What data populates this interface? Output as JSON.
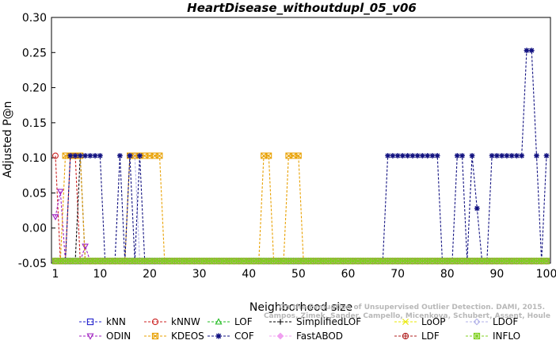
{
  "chart_data": {
    "type": "line",
    "title": "HeartDisease_withoutdupl_05_v06",
    "xlabel": "Neighborhood size",
    "ylabel": "Adjusted P@n",
    "xlim": [
      1,
      100
    ],
    "ylim": [
      -0.05,
      0.3
    ],
    "x_ticks": [
      1,
      10,
      20,
      30,
      40,
      50,
      60,
      70,
      80,
      90,
      100
    ],
    "x_tick_labels": [
      "1",
      "10",
      "20",
      "30",
      "40",
      "50",
      "60",
      "70",
      "80",
      "90",
      "100"
    ],
    "y_ticks": [
      -0.05,
      0.0,
      0.05,
      0.1,
      0.15,
      0.2,
      0.25,
      0.3
    ],
    "y_tick_labels": [
      "-0.05",
      "0.00",
      "0.05",
      "0.10",
      "0.15",
      "0.20",
      "0.25",
      "0.30"
    ],
    "grid": false,
    "legend_position": "bottom",
    "watermark": [
      "Campos, Zimek, Sander, Campello, Micenkova, Schubert, Assent, Houle",
      "On the Evaluation of Unsupervised Outlier Detection. DAMI, 2015."
    ],
    "series": [
      {
        "name": "kNN",
        "color": "#2222cc",
        "marker": "square",
        "points": [
          [
            1,
            -0.047
          ],
          [
            100,
            -0.047
          ]
        ]
      },
      {
        "name": "kNNW",
        "color": "#cc2222",
        "marker": "circle",
        "points": [
          [
            1,
            0.103
          ],
          [
            2,
            -0.047
          ],
          [
            3,
            -0.047
          ],
          [
            4,
            0.103
          ],
          [
            5,
            0.103
          ],
          [
            6,
            -0.047
          ],
          [
            100,
            -0.047
          ]
        ]
      },
      {
        "name": "LOF",
        "color": "#22bb22",
        "marker": "triangle-up",
        "points": [
          [
            1,
            -0.047
          ],
          [
            100,
            -0.047
          ]
        ]
      },
      {
        "name": "SimplifiedLOF",
        "color": "#000000",
        "marker": "plus",
        "points": [
          [
            1,
            -0.047
          ],
          [
            5,
            -0.047
          ],
          [
            6,
            0.103
          ],
          [
            7,
            -0.047
          ],
          [
            100,
            -0.047
          ]
        ]
      },
      {
        "name": "LoOP",
        "color": "#e8e800",
        "marker": "cross",
        "points": [
          [
            1,
            -0.047
          ],
          [
            100,
            -0.047
          ]
        ]
      },
      {
        "name": "LDOF",
        "color": "#b0b0e8",
        "marker": "diamond",
        "points": [
          [
            1,
            -0.047
          ],
          [
            15,
            -0.047
          ],
          [
            16,
            0.103
          ],
          [
            17,
            0.103
          ],
          [
            18,
            -0.047
          ],
          [
            100,
            -0.047
          ]
        ]
      },
      {
        "name": "ODIN",
        "color": "#a020c0",
        "marker": "triangle-down",
        "points": [
          [
            1,
            0.016
          ],
          [
            2,
            0.052
          ],
          [
            3,
            -0.047
          ],
          [
            6,
            -0.047
          ],
          [
            7,
            -0.026
          ],
          [
            8,
            -0.047
          ],
          [
            100,
            -0.047
          ]
        ]
      },
      {
        "name": "KDEOS",
        "color": "#e8a000",
        "marker": "square-x",
        "points": [
          [
            1,
            -0.047
          ],
          [
            2,
            -0.047
          ],
          [
            3,
            0.103
          ],
          [
            4,
            0.103
          ],
          [
            5,
            0.103
          ],
          [
            6,
            0.103
          ],
          [
            7,
            -0.047
          ],
          [
            15,
            -0.047
          ],
          [
            16,
            0.103
          ],
          [
            17,
            0.103
          ],
          [
            18,
            0.103
          ],
          [
            19,
            0.103
          ],
          [
            20,
            0.103
          ],
          [
            21,
            0.103
          ],
          [
            22,
            0.103
          ],
          [
            23,
            -0.047
          ],
          [
            42,
            -0.047
          ],
          [
            43,
            0.103
          ],
          [
            44,
            0.103
          ],
          [
            45,
            -0.047
          ],
          [
            47,
            -0.047
          ],
          [
            48,
            0.103
          ],
          [
            49,
            0.103
          ],
          [
            50,
            0.103
          ],
          [
            51,
            -0.047
          ],
          [
            100,
            -0.047
          ]
        ]
      },
      {
        "name": "COF",
        "color": "#101080",
        "marker": "asterisk",
        "points": [
          [
            1,
            -0.047
          ],
          [
            3,
            -0.047
          ],
          [
            4,
            0.103
          ],
          [
            5,
            0.103
          ],
          [
            6,
            0.103
          ],
          [
            7,
            0.103
          ],
          [
            8,
            0.103
          ],
          [
            9,
            0.103
          ],
          [
            10,
            0.103
          ],
          [
            11,
            -0.047
          ],
          [
            13,
            -0.047
          ],
          [
            14,
            0.103
          ],
          [
            15,
            -0.047
          ],
          [
            16,
            0.103
          ],
          [
            17,
            -0.047
          ],
          [
            18,
            0.103
          ],
          [
            19,
            -0.047
          ],
          [
            67,
            -0.047
          ],
          [
            68,
            0.103
          ],
          [
            69,
            0.103
          ],
          [
            70,
            0.103
          ],
          [
            71,
            0.103
          ],
          [
            72,
            0.103
          ],
          [
            73,
            0.103
          ],
          [
            74,
            0.103
          ],
          [
            75,
            0.103
          ],
          [
            76,
            0.103
          ],
          [
            77,
            0.103
          ],
          [
            78,
            0.103
          ],
          [
            79,
            -0.047
          ],
          [
            81,
            -0.047
          ],
          [
            82,
            0.103
          ],
          [
            83,
            0.103
          ],
          [
            84,
            -0.047
          ],
          [
            85,
            0.103
          ],
          [
            86,
            0.028
          ],
          [
            87,
            -0.047
          ],
          [
            88,
            -0.047
          ],
          [
            89,
            0.103
          ],
          [
            90,
            0.103
          ],
          [
            91,
            0.103
          ],
          [
            92,
            0.103
          ],
          [
            93,
            0.103
          ],
          [
            94,
            0.103
          ],
          [
            95,
            0.103
          ],
          [
            96,
            0.253
          ],
          [
            97,
            0.253
          ],
          [
            98,
            0.103
          ],
          [
            99,
            -0.047
          ],
          [
            100,
            0.103
          ]
        ]
      },
      {
        "name": "FastABOD",
        "color": "#f0a0f0",
        "marker": "diamond-filled",
        "points": [
          [
            1,
            -0.047
          ],
          [
            100,
            -0.047
          ]
        ]
      },
      {
        "name": "LDF",
        "color": "#b02020",
        "marker": "circle-plus",
        "points": [
          [
            1,
            -0.047
          ],
          [
            100,
            -0.047
          ]
        ]
      },
      {
        "name": "INFLO",
        "color": "#80d020",
        "marker": "square-star",
        "points": [
          [
            1,
            -0.047
          ],
          [
            100,
            -0.047
          ]
        ]
      }
    ]
  }
}
